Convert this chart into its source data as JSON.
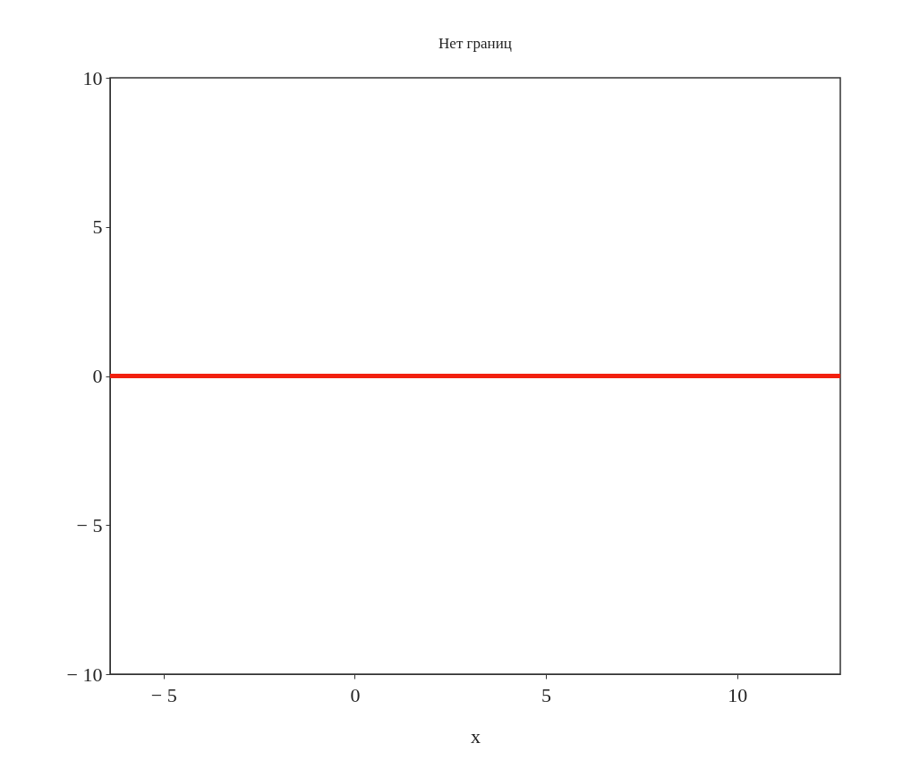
{
  "chart_data": {
    "type": "line",
    "title": "Нет границ",
    "xlabel": "x",
    "x": [
      -6.4,
      12.7
    ],
    "series": [
      {
        "color": "#f2200f",
        "values": [
          0,
          0
        ]
      }
    ],
    "xlim": [
      -6.4,
      12.7
    ],
    "xticks": [
      {
        "value": -5,
        "label": "− 5"
      },
      0,
      5,
      10
    ],
    "ylim": [
      -10,
      10
    ],
    "yticks": [
      {
        "value": -10,
        "label": "− 10"
      },
      {
        "value": -5,
        "label": "− 5"
      },
      0,
      5,
      10
    ],
    "grid": false,
    "marker": "none",
    "line_style": "solid"
  }
}
